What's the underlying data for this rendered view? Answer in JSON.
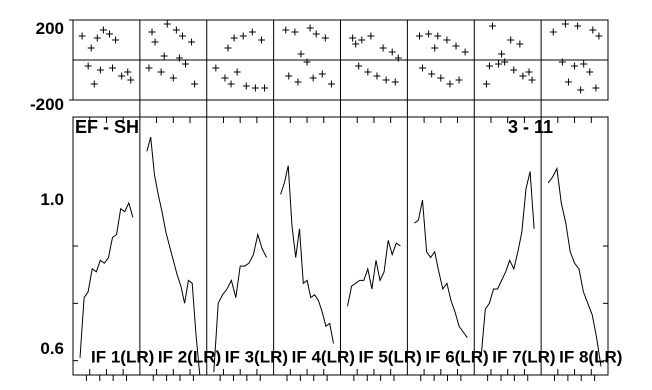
{
  "chart_data": {
    "type": "line",
    "top_panel": {
      "type": "scatter",
      "yticks": [
        "200",
        "-200"
      ],
      "ylim": [
        -200,
        200
      ],
      "panels": [
        [
          [
            0.1,
            120
          ],
          [
            0.25,
            60
          ],
          [
            0.35,
            110
          ],
          [
            0.45,
            150
          ],
          [
            0.55,
            130
          ],
          [
            0.65,
            100
          ],
          [
            0.2,
            -30
          ],
          [
            0.4,
            -50
          ],
          [
            0.6,
            -40
          ],
          [
            0.75,
            -80
          ],
          [
            0.85,
            -60
          ],
          [
            0.9,
            -100
          ],
          [
            0.3,
            -120
          ]
        ],
        [
          [
            0.15,
            140
          ],
          [
            0.2,
            90
          ],
          [
            0.4,
            180
          ],
          [
            0.55,
            150
          ],
          [
            0.65,
            120
          ],
          [
            0.8,
            90
          ],
          [
            0.35,
            20
          ],
          [
            0.6,
            10
          ],
          [
            0.7,
            -20
          ],
          [
            0.3,
            -60
          ],
          [
            0.5,
            -90
          ],
          [
            0.85,
            -120
          ],
          [
            0.1,
            -40
          ]
        ],
        [
          [
            0.3,
            60
          ],
          [
            0.4,
            110
          ],
          [
            0.55,
            120
          ],
          [
            0.7,
            140
          ],
          [
            0.85,
            100
          ],
          [
            0.1,
            -40
          ],
          [
            0.25,
            -90
          ],
          [
            0.35,
            -120
          ],
          [
            0.6,
            -130
          ],
          [
            0.75,
            -140
          ],
          [
            0.9,
            -140
          ],
          [
            0.45,
            -60
          ]
        ],
        [
          [
            0.15,
            150
          ],
          [
            0.3,
            140
          ],
          [
            0.55,
            160
          ],
          [
            0.65,
            130
          ],
          [
            0.8,
            110
          ],
          [
            0.4,
            30
          ],
          [
            0.5,
            -10
          ],
          [
            0.2,
            -80
          ],
          [
            0.35,
            -110
          ],
          [
            0.6,
            -90
          ],
          [
            0.75,
            -70
          ],
          [
            0.9,
            -120
          ]
        ],
        [
          [
            0.15,
            110
          ],
          [
            0.3,
            100
          ],
          [
            0.45,
            120
          ],
          [
            0.65,
            60
          ],
          [
            0.8,
            40
          ],
          [
            0.25,
            -30
          ],
          [
            0.4,
            -60
          ],
          [
            0.55,
            -80
          ],
          [
            0.7,
            -100
          ],
          [
            0.85,
            -110
          ],
          [
            0.2,
            80
          ],
          [
            0.9,
            10
          ]
        ],
        [
          [
            0.15,
            120
          ],
          [
            0.3,
            130
          ],
          [
            0.45,
            120
          ],
          [
            0.6,
            100
          ],
          [
            0.75,
            70
          ],
          [
            0.9,
            40
          ],
          [
            0.2,
            -40
          ],
          [
            0.35,
            -70
          ],
          [
            0.5,
            -90
          ],
          [
            0.65,
            -120
          ],
          [
            0.8,
            -100
          ],
          [
            0.4,
            60
          ]
        ],
        [
          [
            0.25,
            170
          ],
          [
            0.55,
            100
          ],
          [
            0.7,
            80
          ],
          [
            0.2,
            -30
          ],
          [
            0.35,
            -20
          ],
          [
            0.45,
            -10
          ],
          [
            0.6,
            -50
          ],
          [
            0.75,
            -80
          ],
          [
            0.85,
            -60
          ],
          [
            0.15,
            -120
          ],
          [
            0.9,
            -100
          ],
          [
            0.4,
            30
          ]
        ],
        [
          [
            0.15,
            140
          ],
          [
            0.35,
            180
          ],
          [
            0.55,
            170
          ],
          [
            0.8,
            150
          ],
          [
            0.9,
            120
          ],
          [
            0.3,
            -10
          ],
          [
            0.5,
            -30
          ],
          [
            0.65,
            -20
          ],
          [
            0.75,
            -60
          ],
          [
            0.4,
            -110
          ],
          [
            0.6,
            -150
          ],
          [
            0.85,
            -140
          ]
        ]
      ]
    },
    "bottom_panel": {
      "yticks": [
        1.0,
        0.6
      ],
      "ylim": [
        0.55,
        1.45
      ],
      "series": [
        {
          "name": "IF 1(LR)",
          "values": [
            0.61,
            0.82,
            0.84,
            0.92,
            0.91,
            0.95,
            0.94,
            0.96,
            1.03,
            1.04,
            1.13,
            1.12,
            1.15,
            1.1
          ]
        },
        {
          "name": "IF 2(LR)",
          "values": [
            1.33,
            1.38,
            1.25,
            1.18,
            1.12,
            1.05,
            1.0,
            0.95,
            0.9,
            0.86,
            0.8,
            0.88,
            0.87,
            0.69,
            0.55
          ]
        },
        {
          "name": "IF 3(LR)",
          "values": [
            0.56,
            0.8,
            0.83,
            0.85,
            0.88,
            0.82,
            0.93,
            0.93,
            0.94,
            0.97,
            1.04,
            0.99,
            0.96
          ]
        },
        {
          "name": "IF 4(LR)",
          "values": [
            1.18,
            1.22,
            1.28,
            1.07,
            0.96,
            1.06,
            0.87,
            0.88,
            0.82,
            0.83,
            0.81,
            0.77,
            0.72,
            0.73,
            0.66
          ]
        },
        {
          "name": "IF 5(LR)",
          "values": [
            0.79,
            0.86,
            0.87,
            0.88,
            0.88,
            0.92,
            0.85,
            0.95,
            0.88,
            0.91,
            1.02,
            0.97,
            1.01,
            1.0
          ]
        },
        {
          "name": "IF 6(LR)",
          "values": [
            1.08,
            1.09,
            1.16,
            0.98,
            0.96,
            0.98,
            0.91,
            0.85,
            0.87,
            0.81,
            0.77,
            0.72,
            0.7,
            0.68
          ]
        },
        {
          "name": "IF 7(LR)",
          "values": [
            0.62,
            0.78,
            0.8,
            0.85,
            0.85,
            0.88,
            0.91,
            0.95,
            0.92,
            0.98,
            1.05,
            1.2,
            1.26,
            1.06
          ]
        },
        {
          "name": "IF 8(LR)",
          "values": [
            1.22,
            1.24,
            1.27,
            1.15,
            1.08,
            0.98,
            0.94,
            0.92,
            0.84,
            0.8,
            0.76,
            0.68,
            0.58
          ]
        }
      ]
    },
    "annotations": {
      "left": "EF - SH",
      "right": "3 - 11"
    }
  }
}
